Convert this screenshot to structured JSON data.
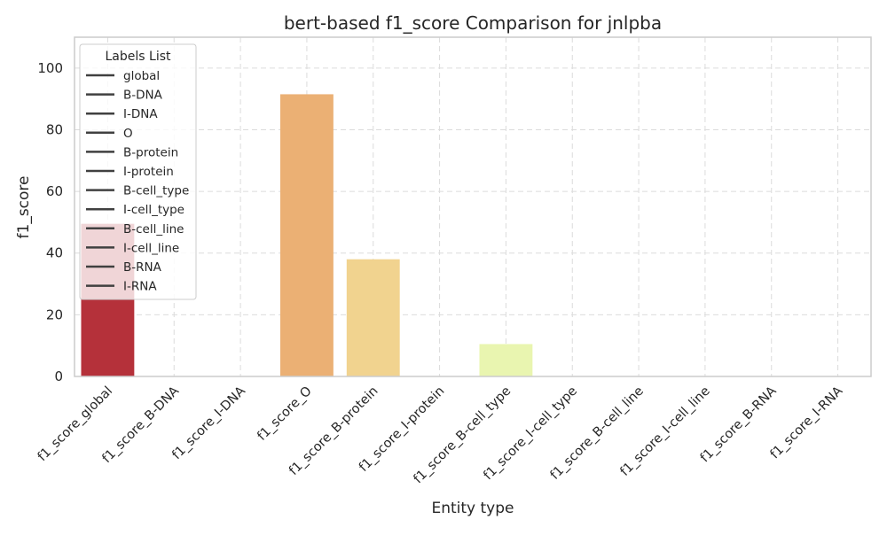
{
  "chart_data": {
    "type": "bar",
    "title": "bert-based f1_score Comparison for jnlpba",
    "xlabel": "Entity type",
    "ylabel": "f1_score",
    "ylim": [
      0,
      110
    ],
    "yticks": [
      0,
      20,
      40,
      60,
      80,
      100
    ],
    "grid": true,
    "categories": [
      "f1_score_global",
      "f1_score_B-DNA",
      "f1_score_I-DNA",
      "f1_score_O",
      "f1_score_B-protein",
      "f1_score_I-protein",
      "f1_score_B-cell_type",
      "f1_score_I-cell_type",
      "f1_score_B-cell_line",
      "f1_score_I-cell_line",
      "f1_score_B-RNA",
      "f1_score_I-RNA"
    ],
    "values": [
      49.5,
      0,
      0,
      91.5,
      38,
      0,
      10.5,
      0,
      0,
      0,
      0,
      0
    ],
    "colors": [
      "#b5313a",
      "#cf4d3a",
      "#e2683f",
      "#ebb074",
      "#f1d38f",
      "#f7e8a0",
      "#e9f5b0",
      "#d4eba3",
      "#b0dba0",
      "#86c9a3",
      "#5dafa6",
      "#3d8fb0"
    ],
    "legend": {
      "title": "Labels List",
      "position": "top-left",
      "entries": [
        "global",
        "B-DNA",
        "I-DNA",
        "O",
        "B-protein",
        "I-protein",
        "B-cell_type",
        "I-cell_type",
        "B-cell_line",
        "I-cell_line",
        "B-RNA",
        "I-RNA"
      ]
    }
  }
}
